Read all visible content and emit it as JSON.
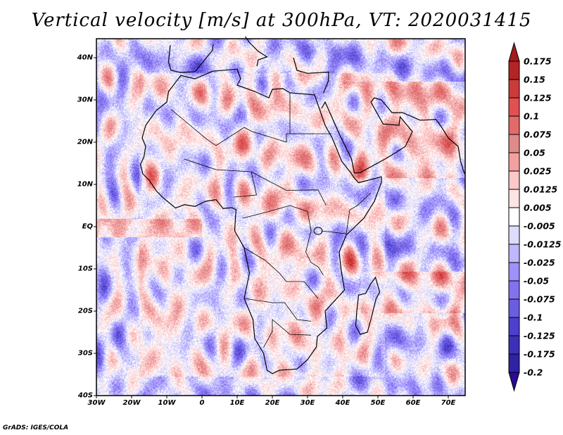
{
  "title": "Vertical velocity [m/s] at 300hPa, VT: 2020031415",
  "lat_labels": [
    "40N",
    "30N",
    "20N",
    "10N",
    "EQ",
    "10S",
    "20S",
    "30S",
    "40S"
  ],
  "lat_values": [
    40,
    30,
    20,
    10,
    0,
    -10,
    -20,
    -30,
    -40
  ],
  "lon_labels": [
    "30W",
    "20W",
    "10W",
    "0",
    "10E",
    "20E",
    "30E",
    "40E",
    "50E",
    "60E",
    "70E"
  ],
  "lon_values": [
    -30,
    -20,
    -10,
    0,
    10,
    20,
    30,
    40,
    50,
    60,
    70
  ],
  "map_extent": {
    "lon": [
      -30,
      75
    ],
    "lat": [
      -40,
      45
    ]
  },
  "colorbar": {
    "labels": [
      "0.175",
      "0.15",
      "0.125",
      "0.1",
      "0.075",
      "0.05",
      "0.025",
      "0.0125",
      "0.005",
      "-0.005",
      "-0.0125",
      "-0.025",
      "-0.05",
      "-0.075",
      "-0.1",
      "-0.125",
      "-0.175",
      "-0.2"
    ],
    "colors": [
      "#a51c1c",
      "#b42424",
      "#cc3a3a",
      "#e45050",
      "#e46a6a",
      "#e08a8a",
      "#f4a0a0",
      "#fcc8c8",
      "#fde4e4",
      "#ffffff",
      "#dcdcfc",
      "#beb8fc",
      "#a090fc",
      "#8272f0",
      "#6a5ee0",
      "#4c40cc",
      "#3c30b8",
      "#3022a4",
      "#2a0a98"
    ]
  },
  "footer": "GrADS: IGES/COLA"
}
